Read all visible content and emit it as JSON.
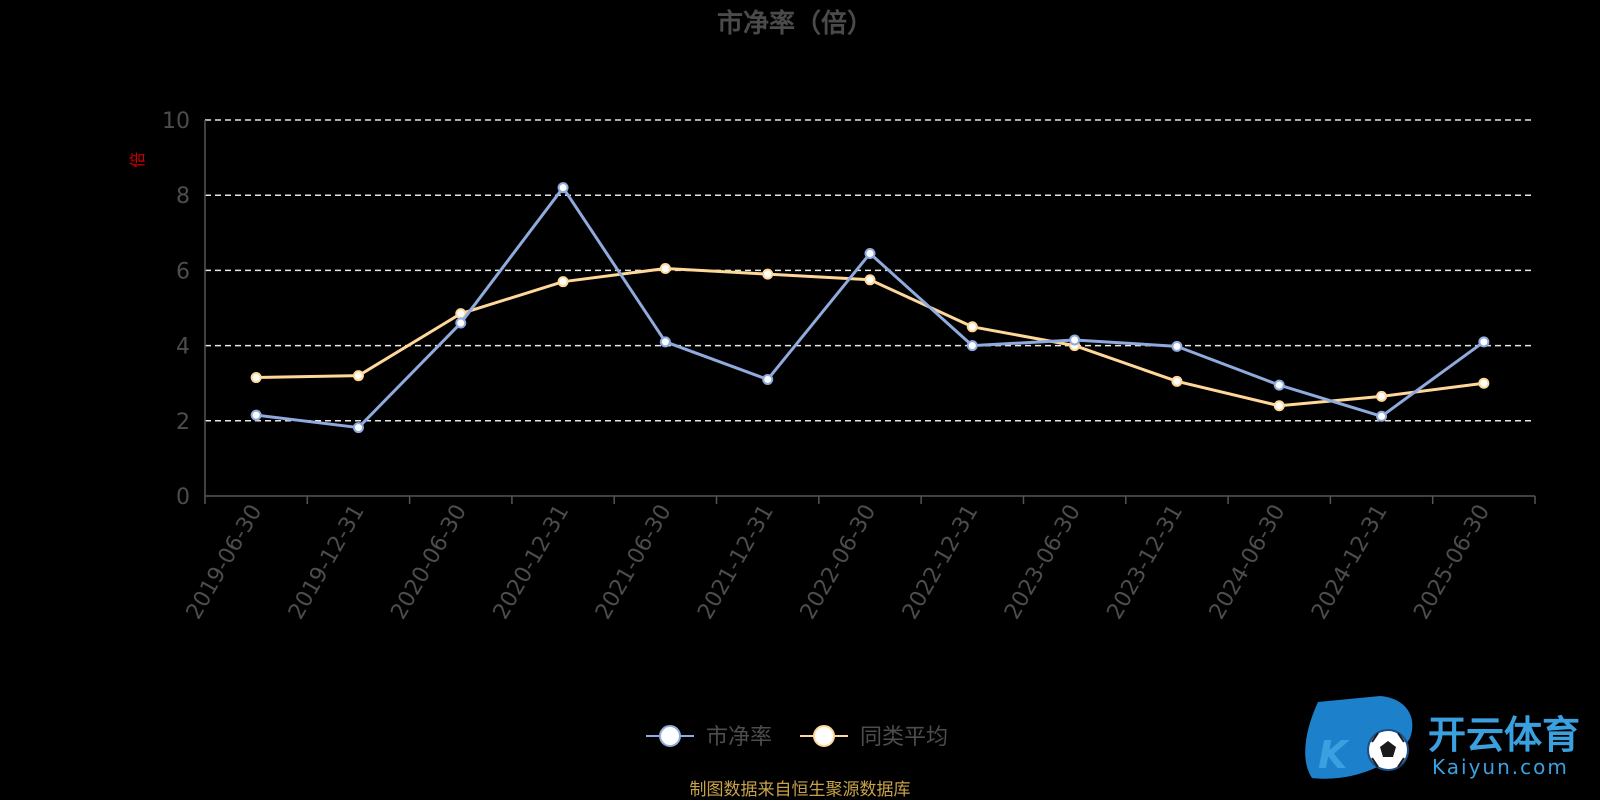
{
  "chart_data": {
    "type": "line",
    "title": "市净率（倍）",
    "ylabel": "倍",
    "ylim": [
      0,
      10
    ],
    "yticks": [
      0,
      2,
      4,
      6,
      8,
      10
    ],
    "grid": true,
    "legend_position": "bottom-center",
    "categories": [
      "2019-06-30",
      "2019-12-31",
      "2020-06-30",
      "2020-12-31",
      "2021-06-30",
      "2021-12-31",
      "2022-06-30",
      "2022-12-31",
      "2023-06-30",
      "2023-12-31",
      "2024-06-30",
      "2024-12-31",
      "2025-06-30"
    ],
    "series": [
      {
        "name": "市净率",
        "color": "#8faadc",
        "values": [
          2.15,
          1.82,
          4.6,
          8.2,
          4.1,
          3.1,
          6.45,
          4.0,
          4.15,
          3.98,
          2.95,
          2.12,
          4.1
        ]
      },
      {
        "name": "同类平均",
        "color": "#ffd899",
        "values": [
          3.15,
          3.2,
          4.85,
          5.7,
          6.05,
          5.9,
          5.75,
          4.5,
          4.0,
          3.05,
          2.4,
          2.65,
          3.0
        ]
      }
    ]
  },
  "source_note": "制图数据来自恒生聚源数据库",
  "watermark": {
    "brand_cn": "开云体育",
    "brand_en": "Kaiyun.com",
    "logo_letter": "K"
  }
}
